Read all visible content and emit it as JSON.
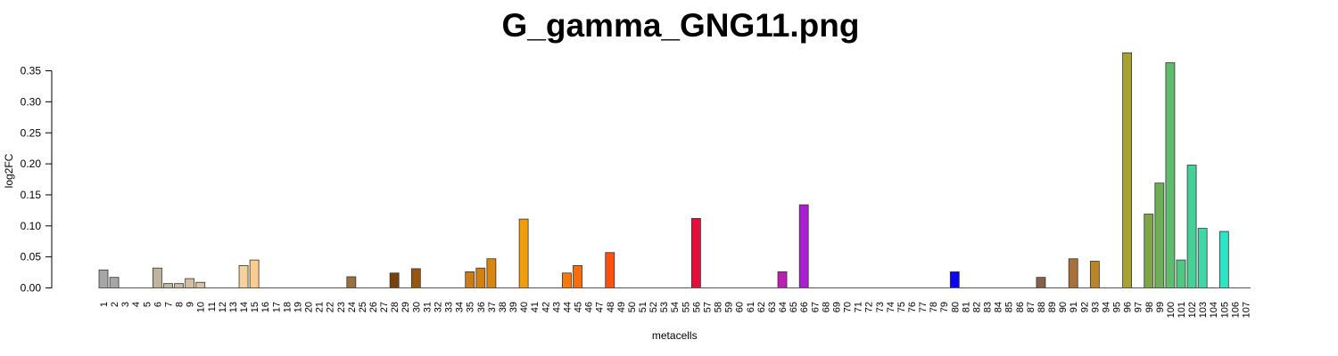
{
  "chart_data": {
    "type": "bar",
    "title": "G_gamma_GNG11.png",
    "xlabel": "metacells",
    "ylabel": "log2FC",
    "ylim": [
      0,
      0.38
    ],
    "yticks": [
      0.0,
      0.05,
      0.1,
      0.15,
      0.2,
      0.25,
      0.3,
      0.35
    ],
    "ytick_labels": [
      "0.00",
      "0.05",
      "0.10",
      "0.15",
      "0.20",
      "0.25",
      "0.30",
      "0.35"
    ],
    "grid": false,
    "categories": [
      "1",
      "2",
      "3",
      "4",
      "5",
      "6",
      "7",
      "8",
      "9",
      "10",
      "11",
      "12",
      "13",
      "14",
      "15",
      "16",
      "17",
      "18",
      "19",
      "20",
      "21",
      "22",
      "23",
      "24",
      "25",
      "26",
      "27",
      "28",
      "29",
      "30",
      "31",
      "32",
      "33",
      "34",
      "35",
      "36",
      "37",
      "38",
      "39",
      "40",
      "41",
      "42",
      "43",
      "44",
      "45",
      "46",
      "47",
      "48",
      "49",
      "50",
      "51",
      "52",
      "53",
      "54",
      "55",
      "56",
      "57",
      "58",
      "59",
      "60",
      "61",
      "62",
      "63",
      "64",
      "65",
      "66",
      "67",
      "68",
      "69",
      "70",
      "71",
      "72",
      "73",
      "74",
      "75",
      "76",
      "77",
      "78",
      "79",
      "80",
      "81",
      "82",
      "83",
      "84",
      "85",
      "86",
      "87",
      "88",
      "89",
      "90",
      "91",
      "92",
      "93",
      "94",
      "95",
      "96",
      "97",
      "98",
      "99",
      "100",
      "101",
      "102",
      "103",
      "104",
      "105",
      "106",
      "107"
    ],
    "values": [
      0.029,
      0.017,
      0,
      0,
      0,
      0.032,
      0.007,
      0.007,
      0.015,
      0.009,
      0,
      0,
      0,
      0.036,
      0.045,
      0,
      0,
      0,
      0,
      0,
      0,
      0,
      0,
      0.018,
      0,
      0,
      0,
      0.024,
      0,
      0.031,
      0,
      0,
      0,
      0,
      0.026,
      0.032,
      0.047,
      0,
      0,
      0.111,
      0,
      0,
      0,
      0.024,
      0.036,
      0,
      0,
      0.057,
      0,
      0,
      0,
      0,
      0,
      0,
      0,
      0.112,
      0,
      0,
      0,
      0,
      0,
      0,
      0,
      0.026,
      0,
      0.134,
      0,
      0,
      0,
      0,
      0,
      0,
      0,
      0,
      0,
      0,
      0,
      0,
      0,
      0.026,
      0,
      0,
      0,
      0,
      0,
      0,
      0,
      0.017,
      0,
      0,
      0.047,
      0,
      0.043,
      0,
      0,
      0.379,
      0,
      0.119,
      0.169,
      0.363,
      0.045,
      0.198,
      0.096,
      0,
      0.091,
      0,
      0
    ],
    "colors": [
      "#a6a6a6",
      "#a6a6a6",
      "#b4a89a",
      "#b4a89a",
      "#b9ab9c",
      "#c2b39f",
      "#c7b69f",
      "#ccb9a0",
      "#d5bfa0",
      "#ddc3a2",
      "#e2c6a3",
      "#e8caa3",
      "#f0cfa3",
      "#f6d19c",
      "#f9cd90",
      "#d9a36e",
      "#c48e59",
      "#b07a45",
      "#9e6937",
      "#8e5a2c",
      "#7e4d22",
      "#74451c",
      "#9b6f3e",
      "#9b6f3e",
      "#8a5520",
      "#7e4516",
      "#75410e",
      "#79410b",
      "#8a4a0b",
      "#99540f",
      "#a55f12",
      "#b06814",
      "#bc7217",
      "#c47516",
      "#cd7b14",
      "#d4800f",
      "#d9860c",
      "#e08e0a",
      "#e9960a",
      "#f29c0a",
      "#f59a0b",
      "#f78f0c",
      "#fa810c",
      "#fb780d",
      "#fc6c0d",
      "#fd600d",
      "#fe560d",
      "#fe4f0d",
      "#f94618",
      "#f33c20",
      "#ec3127",
      "#e6272d",
      "#e01f32",
      "#db1a36",
      "#dc1438",
      "#e40e3c",
      "#e20c3c",
      "#d9083e",
      "#c9155f",
      "#bb1d7b",
      "#b42291",
      "#b32399",
      "#b624a5",
      "#bb20b5",
      "#bc1ec4",
      "#a91fd2",
      "#9022d0",
      "#7824d2",
      "#5c20d3",
      "#441fd5",
      "#321fd8",
      "#261adc",
      "#1e15e0",
      "#1a12e3",
      "#1610e6",
      "#130ee9",
      "#100ced",
      "#0e0af0",
      "#0c08f3",
      "#0a06f5",
      "#3a3fa2",
      "#5e4d8f",
      "#6b4f7d",
      "#73516d",
      "#7a5261",
      "#805456",
      "#845a4c",
      "#875f47",
      "#8d6439",
      "#9e6c32",
      "#a8703b",
      "#b07a2e",
      "#b8852a",
      "#c08e22",
      "#a09a2c",
      "#a9a231",
      "#8da244",
      "#7fa548",
      "#6eae56",
      "#5fbc6e",
      "#4fc981",
      "#45d096",
      "#3dd7a8",
      "#35ddb7",
      "#2de4c6",
      "#24e8d2",
      "#1fecd9"
    ]
  }
}
